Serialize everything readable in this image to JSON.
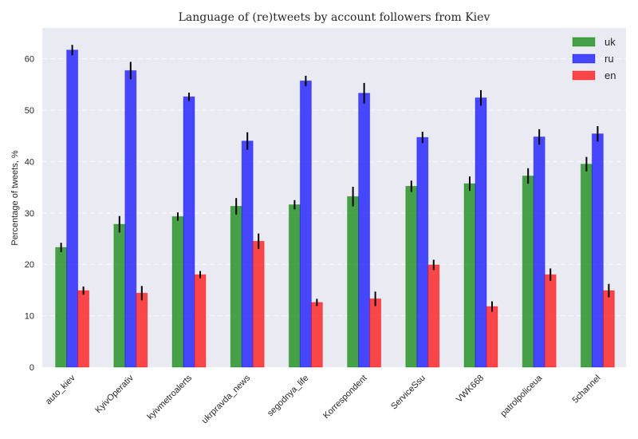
{
  "chart_data": {
    "type": "bar",
    "title": "Language of (re)tweets by account followers from Kiev",
    "xlabel": "",
    "ylabel": "Percentage of tweets, %",
    "ylim": [
      0,
      66
    ],
    "yticks": [
      0,
      10,
      20,
      30,
      40,
      50,
      60
    ],
    "grid": true,
    "legend_position": "top-right",
    "categories": [
      "auto_kiev",
      "KyivOperativ",
      "kyivmetroalerts",
      "ukrpravda_news",
      "segodnya_life",
      "Korrespondent",
      "ServiceSsu",
      "VWK668",
      "patrolpoliceua",
      "5channel"
    ],
    "series": [
      {
        "name": "uk",
        "color": "#008000",
        "values": [
          23.3,
          27.8,
          29.3,
          31.3,
          31.6,
          33.2,
          35.2,
          35.7,
          37.2,
          39.5
        ],
        "errors": [
          0.9,
          1.6,
          0.8,
          1.6,
          0.9,
          1.9,
          1.1,
          1.4,
          1.5,
          1.4
        ]
      },
      {
        "name": "ru",
        "color": "#0000ff",
        "values": [
          61.7,
          57.7,
          52.6,
          44.0,
          55.7,
          53.3,
          44.7,
          52.4,
          44.8,
          45.4
        ],
        "errors": [
          1.0,
          1.7,
          0.8,
          1.7,
          1.0,
          2.0,
          1.1,
          1.5,
          1.5,
          1.5
        ]
      },
      {
        "name": "en",
        "color": "#ff0000",
        "values": [
          14.9,
          14.4,
          18.0,
          24.5,
          12.6,
          13.3,
          19.9,
          11.8,
          18.0,
          14.9
        ],
        "errors": [
          0.8,
          1.4,
          0.7,
          1.5,
          0.7,
          1.4,
          1.0,
          1.0,
          1.2,
          1.3
        ]
      }
    ]
  }
}
